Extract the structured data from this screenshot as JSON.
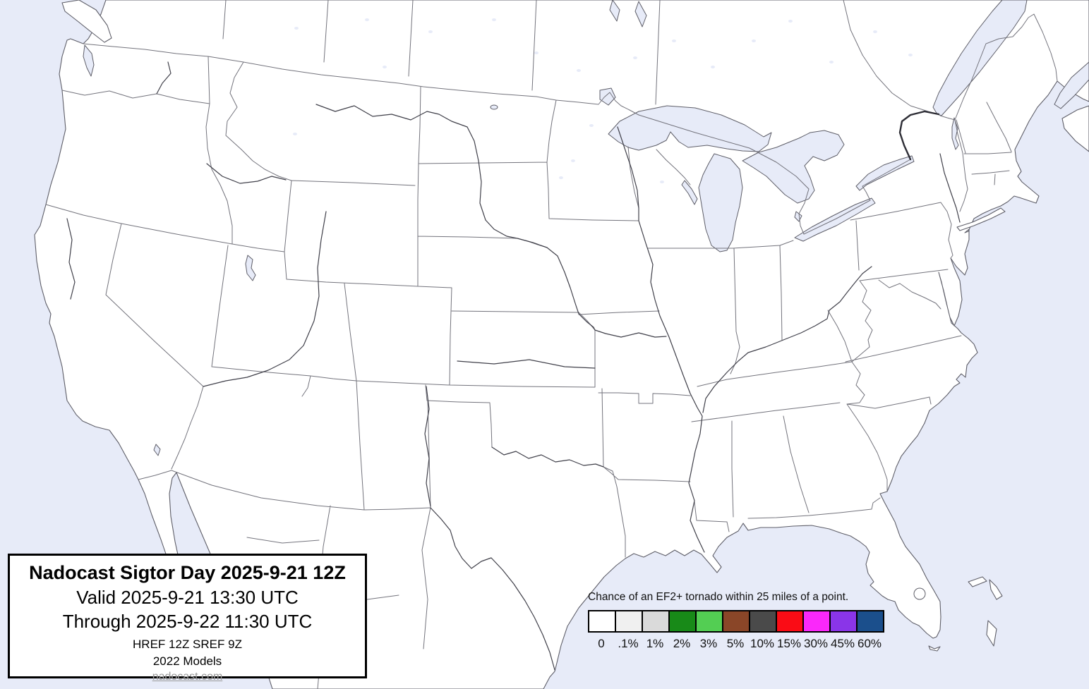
{
  "title_box": {
    "title": "Nadocast Sigtor Day 2025-9-21 12Z",
    "valid_line": "Valid 2025-9-21 13:30 UTC",
    "through_line": "Through 2025-9-22 11:30 UTC",
    "models_line": "HREF 12Z SREF 9Z",
    "models_year_line": "2022 Models",
    "website": "nadocast.com"
  },
  "legend": {
    "caption": "Chance of an EF2+ tornado within 25 miles of a point.",
    "items": [
      {
        "label": "0",
        "color": "#ffffff"
      },
      {
        "label": ".1%",
        "color": "#f0f0f0"
      },
      {
        "label": "1%",
        "color": "#dadada"
      },
      {
        "label": "2%",
        "color": "#188a18"
      },
      {
        "label": "3%",
        "color": "#53ce53"
      },
      {
        "label": "5%",
        "color": "#8a4628"
      },
      {
        "label": "10%",
        "color": "#4a4a4a"
      },
      {
        "label": "15%",
        "color": "#fa0c15"
      },
      {
        "label": "30%",
        "color": "#fa28fa"
      },
      {
        "label": "45%",
        "color": "#8a35e8"
      },
      {
        "label": "60%",
        "color": "#1b4f8c"
      }
    ]
  },
  "map": {
    "region": "Continental United States with southern Canada and northern Mexico, no probability contours plotted",
    "colors": {
      "water": "#e7ebf8",
      "land": "#ffffff",
      "state_line": "#73737c",
      "coast_line": "#5e5e68",
      "river": "#40404a"
    }
  }
}
